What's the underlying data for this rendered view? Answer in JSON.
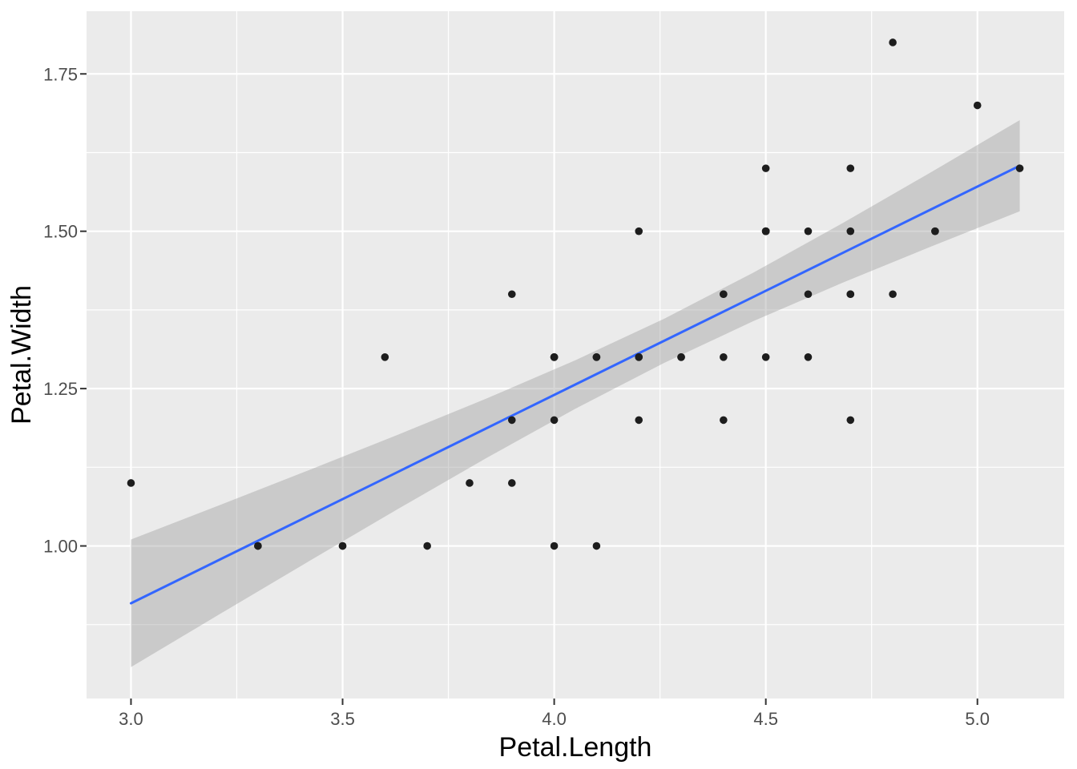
{
  "chart_data": {
    "type": "scatter",
    "title": "",
    "xlabel": "Petal.Length",
    "ylabel": "Petal.Width",
    "legend": "none",
    "grid": true,
    "theme": "ggplot2-grey",
    "xlim": [
      2.895,
      5.205
    ],
    "ylim": [
      0.7576,
      1.8496
    ],
    "x_ticks": {
      "values": [
        3.0,
        3.5,
        4.0,
        4.5,
        5.0
      ],
      "labels": [
        "3.0",
        "3.5",
        "4.0",
        "4.5",
        "5.0"
      ]
    },
    "y_ticks": {
      "values": [
        1.0,
        1.25,
        1.5,
        1.75
      ],
      "labels": [
        "1.00",
        "1.25",
        "1.50",
        "1.75"
      ]
    },
    "x_minor": [
      3.25,
      3.75,
      4.25,
      4.75
    ],
    "y_minor": [
      0.875,
      1.125,
      1.375,
      1.625
    ],
    "points": [
      [
        4.7,
        1.4
      ],
      [
        4.5,
        1.5
      ],
      [
        4.9,
        1.5
      ],
      [
        4.0,
        1.3
      ],
      [
        4.6,
        1.5
      ],
      [
        4.5,
        1.3
      ],
      [
        4.7,
        1.6
      ],
      [
        3.3,
        1.0
      ],
      [
        4.6,
        1.3
      ],
      [
        3.9,
        1.4
      ],
      [
        3.5,
        1.0
      ],
      [
        4.2,
        1.5
      ],
      [
        4.0,
        1.0
      ],
      [
        4.7,
        1.4
      ],
      [
        3.6,
        1.3
      ],
      [
        4.4,
        1.4
      ],
      [
        4.5,
        1.5
      ],
      [
        4.1,
        1.0
      ],
      [
        4.5,
        1.5
      ],
      [
        3.9,
        1.1
      ],
      [
        4.8,
        1.8
      ],
      [
        4.0,
        1.3
      ],
      [
        4.9,
        1.5
      ],
      [
        4.7,
        1.2
      ],
      [
        4.3,
        1.3
      ],
      [
        4.4,
        1.4
      ],
      [
        4.8,
        1.4
      ],
      [
        5.0,
        1.7
      ],
      [
        4.5,
        1.5
      ],
      [
        3.5,
        1.0
      ],
      [
        3.8,
        1.1
      ],
      [
        3.7,
        1.0
      ],
      [
        3.9,
        1.2
      ],
      [
        5.1,
        1.6
      ],
      [
        4.5,
        1.6
      ],
      [
        4.5,
        1.5
      ],
      [
        4.7,
        1.5
      ],
      [
        4.4,
        1.3
      ],
      [
        4.1,
        1.3
      ],
      [
        4.0,
        1.3
      ],
      [
        4.4,
        1.2
      ],
      [
        4.6,
        1.4
      ],
      [
        4.0,
        1.2
      ],
      [
        3.3,
        1.0
      ],
      [
        4.2,
        1.3
      ],
      [
        4.2,
        1.2
      ],
      [
        4.2,
        1.3
      ],
      [
        4.3,
        1.3
      ],
      [
        3.0,
        1.1
      ],
      [
        4.1,
        1.3
      ]
    ],
    "smooth": {
      "method": "lm",
      "slope": 0.3311,
      "intercept": -0.0843,
      "x": [
        3.0,
        3.21,
        3.42,
        3.63,
        3.84,
        4.05,
        4.26,
        4.47,
        4.68,
        4.89,
        5.1
      ],
      "fit": [
        0.9089,
        0.9784,
        1.0479,
        1.1174,
        1.187,
        1.2565,
        1.326,
        1.3955,
        1.465,
        1.5346,
        1.6041
      ],
      "lower": [
        0.8076,
        0.8918,
        0.9755,
        1.0584,
        1.1397,
        1.218,
        1.2909,
        1.357,
        1.4178,
        1.4755,
        1.5317
      ],
      "upper": [
        1.0102,
        1.065,
        1.1203,
        1.1765,
        1.2342,
        1.295,
        1.3611,
        1.434,
        1.5123,
        1.5936,
        1.6765
      ]
    },
    "colors": {
      "background": "#FFFFFF",
      "panel": "#EBEBEB",
      "grid": "#FFFFFF",
      "point": "#1D1D1D",
      "line": "#3366FF",
      "band": "#999999",
      "band_opacity": 0.4,
      "tick": "#333333",
      "tick_label": "#4D4D4D",
      "axis_title": "#000000"
    }
  }
}
